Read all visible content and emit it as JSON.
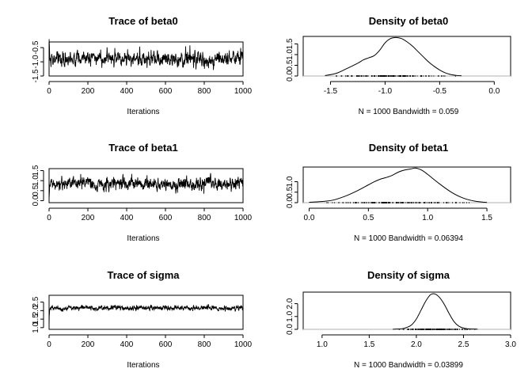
{
  "figure": {
    "panels": [
      {
        "title": "Trace of beta0",
        "kind": "trace"
      },
      {
        "title": "Density of beta0",
        "kind": "density"
      },
      {
        "title": "Trace of beta1",
        "kind": "trace"
      },
      {
        "title": "Density of beta1",
        "kind": "density"
      },
      {
        "title": "Trace of sigma",
        "kind": "trace"
      },
      {
        "title": "Density of sigma",
        "kind": "density"
      }
    ]
  },
  "chart_data": [
    {
      "type": "line",
      "title": "Trace of beta0",
      "xlabel": "Iterations",
      "ylabel": "",
      "xlim": [
        0,
        1000
      ],
      "ylim": [
        -1.5,
        -0.3
      ],
      "x_ticks": [
        "0",
        "200",
        "400",
        "600",
        "800",
        "1000"
      ],
      "y_ticks": [
        "-1.5",
        "-1.0",
        "-0.5"
      ],
      "n": 1000,
      "start": -0.2,
      "mean": -0.9,
      "sd": 0.2,
      "clip": [
        -1.45,
        -0.3
      ]
    },
    {
      "type": "area",
      "title": "Density of beta0",
      "xlabel": "N = 1000   Bandwidth = 0.059",
      "ylabel": "",
      "xlim": [
        -1.75,
        0.15
      ],
      "ylim": [
        0,
        1.85
      ],
      "x_ticks": [
        "-1.5",
        "-1.0",
        "-0.5",
        "0.0"
      ],
      "y_ticks": [
        "0.0",
        "0.5",
        "1.0",
        "1.5"
      ],
      "x": [
        -1.55,
        -1.45,
        -1.35,
        -1.25,
        -1.2,
        -1.15,
        -1.1,
        -1.05,
        -1.0,
        -0.95,
        -0.9,
        -0.85,
        -0.8,
        -0.75,
        -0.7,
        -0.65,
        -0.6,
        -0.55,
        -0.5,
        -0.45,
        -0.4,
        -0.35,
        -0.3
      ],
      "y": [
        0.02,
        0.12,
        0.35,
        0.6,
        0.75,
        0.85,
        0.95,
        1.2,
        1.55,
        1.75,
        1.8,
        1.75,
        1.6,
        1.4,
        1.15,
        0.9,
        0.65,
        0.45,
        0.28,
        0.15,
        0.07,
        0.03,
        0.01
      ]
    },
    {
      "type": "line",
      "title": "Trace of beta1",
      "xlabel": "Iterations",
      "ylabel": "",
      "xlim": [
        0,
        1000
      ],
      "ylim": [
        -0.1,
        1.6
      ],
      "x_ticks": [
        "0",
        "200",
        "400",
        "600",
        "800",
        "1000"
      ],
      "y_ticks": [
        "0.0",
        "0.5",
        "1.0",
        "1.5"
      ],
      "n": 1000,
      "start": 0.05,
      "mean": 0.85,
      "sd": 0.25,
      "clip": [
        0.1,
        1.55
      ]
    },
    {
      "type": "area",
      "title": "Density of beta1",
      "xlabel": "N = 1000   Bandwidth = 0.06394",
      "ylabel": "",
      "xlim": [
        -0.05,
        1.7
      ],
      "ylim": [
        0,
        1.7
      ],
      "x_ticks": [
        "0.0",
        "0.5",
        "1.0",
        "1.5"
      ],
      "y_ticks": [
        "0.0",
        "0.5",
        "1.0"
      ],
      "x": [
        0.0,
        0.1,
        0.2,
        0.3,
        0.4,
        0.5,
        0.55,
        0.6,
        0.65,
        0.7,
        0.75,
        0.8,
        0.85,
        0.9,
        0.95,
        1.0,
        1.1,
        1.2,
        1.3,
        1.4,
        1.5
      ],
      "y": [
        0.02,
        0.05,
        0.12,
        0.3,
        0.55,
        0.85,
        1.0,
        1.12,
        1.2,
        1.3,
        1.45,
        1.55,
        1.6,
        1.65,
        1.55,
        1.35,
        0.9,
        0.5,
        0.22,
        0.07,
        0.01
      ]
    },
    {
      "type": "line",
      "title": "Trace of sigma",
      "xlabel": "Iterations",
      "ylabel": "",
      "xlim": [
        0,
        1000
      ],
      "ylim": [
        0.9,
        2.9
      ],
      "x_ticks": [
        "0",
        "200",
        "400",
        "600",
        "800",
        "1000"
      ],
      "y_ticks": [
        "1.0",
        "1.5",
        "2.0",
        "2.5"
      ],
      "n": 1000,
      "start": 1.0,
      "mean": 2.15,
      "sd": 0.12,
      "clip": [
        1.7,
        2.75
      ]
    },
    {
      "type": "area",
      "title": "Density of sigma",
      "xlabel": "N = 1000   Bandwidth = 0.03899",
      "ylabel": "",
      "xlim": [
        0.8,
        3.0
      ],
      "ylim": [
        0,
        2.9
      ],
      "x_ticks": [
        "1.0",
        "1.5",
        "2.0",
        "2.5",
        "3.0"
      ],
      "y_ticks": [
        "0.0",
        "1.0",
        "2.0"
      ],
      "x": [
        1.75,
        1.85,
        1.9,
        1.95,
        2.0,
        2.05,
        2.1,
        2.15,
        2.2,
        2.25,
        2.3,
        2.35,
        2.4,
        2.45,
        2.5,
        2.55,
        2.6,
        2.65
      ],
      "y": [
        0.01,
        0.05,
        0.15,
        0.35,
        0.8,
        1.5,
        2.2,
        2.7,
        2.75,
        2.45,
        1.9,
        1.2,
        0.6,
        0.25,
        0.1,
        0.04,
        0.02,
        0.01
      ]
    }
  ]
}
